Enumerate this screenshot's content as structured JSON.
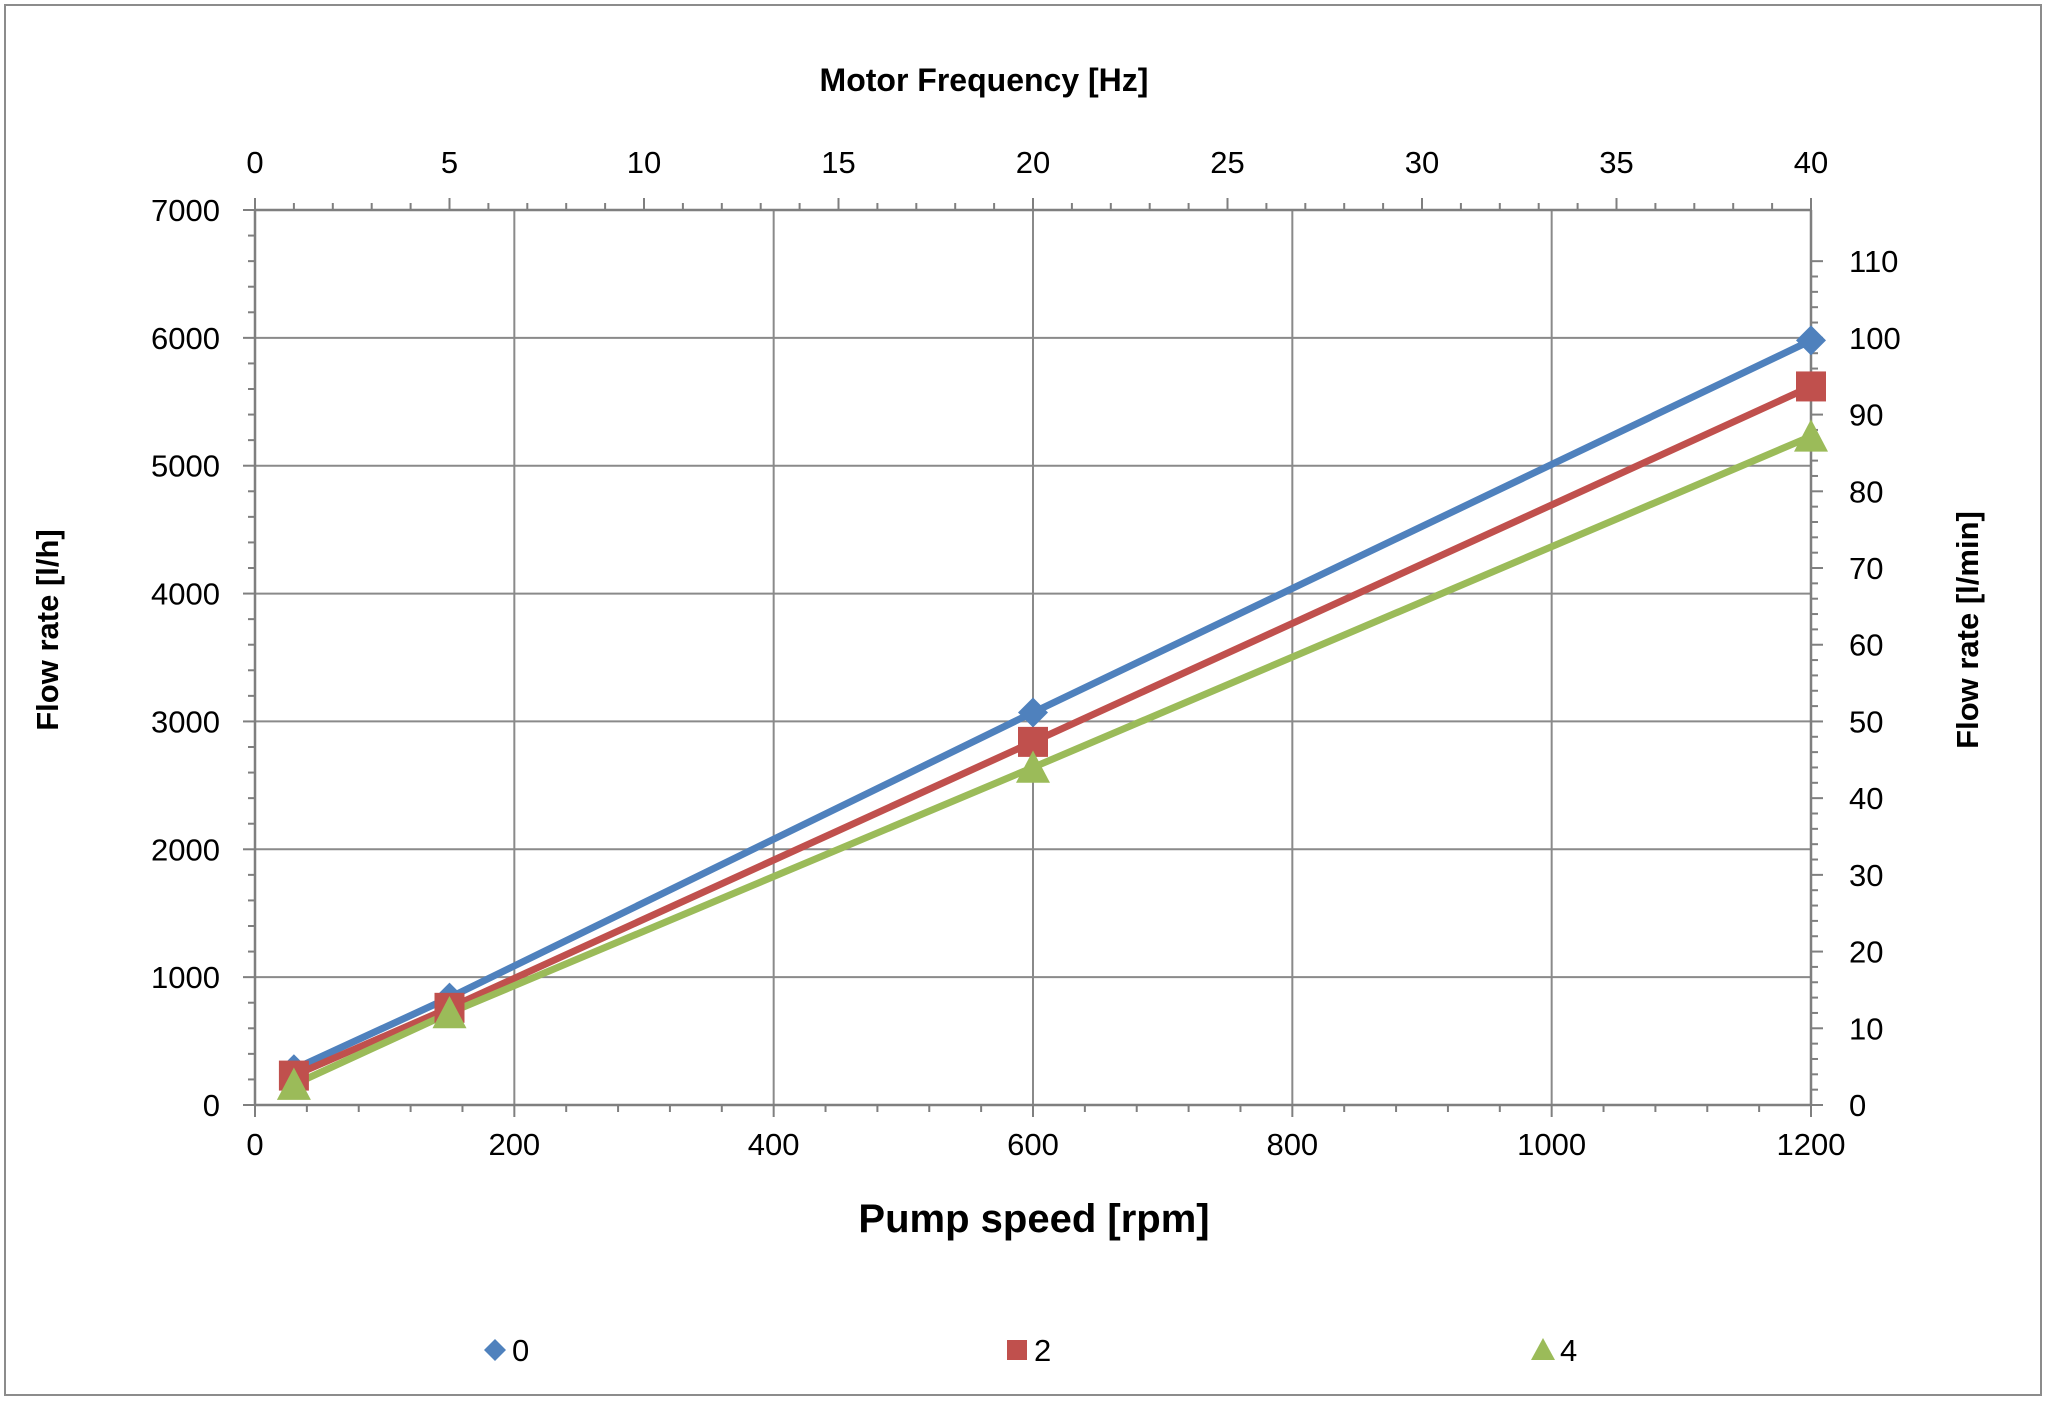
{
  "chart_data": {
    "type": "line",
    "x": [
      30,
      150,
      600,
      1200
    ],
    "series": [
      {
        "name": "0",
        "marker": "diamond",
        "color": "#4F81BD",
        "values": [
          280,
          840,
          3070,
          5980
        ]
      },
      {
        "name": "2",
        "marker": "square",
        "color": "#C0504D",
        "values": [
          230,
          760,
          2840,
          5620
        ]
      },
      {
        "name": "4",
        "marker": "triangle",
        "color": "#9BBB59",
        "values": [
          160,
          720,
          2640,
          5230
        ]
      }
    ],
    "xlabel": "Pump speed [rpm]",
    "xlim": [
      0,
      1200
    ],
    "xticks": [
      "0",
      "200",
      "400",
      "600",
      "800",
      "1000",
      "1200"
    ],
    "ylabel": "Flow rate [l/h]",
    "ylim": [
      0,
      7000
    ],
    "yticks": [
      "0",
      "1000",
      "2000",
      "3000",
      "4000",
      "5000",
      "6000",
      "7000"
    ],
    "x2label": "Motor Frequency [Hz]",
    "x2lim": [
      0,
      40
    ],
    "x2ticks": [
      "0",
      "5",
      "10",
      "15",
      "20",
      "25",
      "30",
      "35",
      "40"
    ],
    "y2label": "Flow rate [l/min]",
    "y2lim": [
      0,
      116.67
    ],
    "y2ticks": [
      "0",
      "10",
      "20",
      "30",
      "40",
      "50",
      "60",
      "70",
      "80",
      "90",
      "100",
      "110"
    ],
    "grid": true,
    "legend_position": "bottom"
  }
}
